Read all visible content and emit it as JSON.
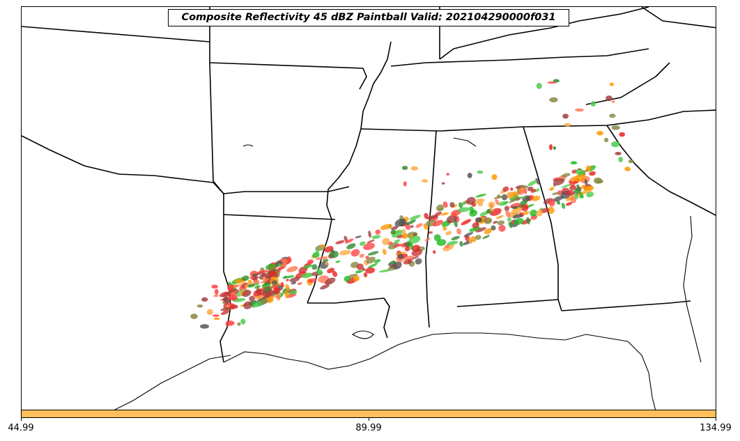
{
  "title": "Composite Reflectivity 45 dBZ Paintball Valid: 202104290000f031",
  "colorbar": {
    "color": "#ffbf5a",
    "min_label": "44.99",
    "mid_label": "89.99",
    "max_label": "134.99"
  },
  "paintball_colors": [
    "#e82020",
    "#ff4444",
    "#1fb81f",
    "#4ccc4c",
    "#ff9900",
    "#ffaa44",
    "#a04040",
    "#2e8b2e",
    "#888844",
    "#555555",
    "#ff7755",
    "#cc3333"
  ],
  "map": {
    "region": "Southeastern United States",
    "border_color": "#000000"
  }
}
